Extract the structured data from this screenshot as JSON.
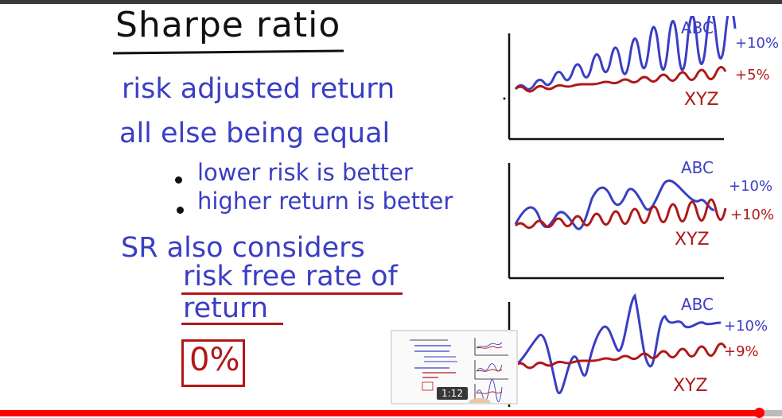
{
  "slide": {
    "title": "Sharpe ratio",
    "line1": "risk adjusted return",
    "line2": "all else being equal",
    "bullets": [
      "lower risk is better",
      "higher return is better"
    ],
    "line3": "SR also considers",
    "line4": "risk free rate of",
    "line5": "return",
    "boxed_value": "0%"
  },
  "charts": [
    {
      "top_label": "ABC",
      "top_value": "+10%",
      "bottom_label": "XYZ",
      "bottom_value": "+5%"
    },
    {
      "top_label": "ABC",
      "top_value": "+10%",
      "bottom_label": "XYZ",
      "bottom_value": "+10%"
    },
    {
      "top_label": "ABC",
      "top_value": "+10%",
      "bottom_label": "XYZ",
      "bottom_value": "+9%"
    }
  ],
  "colors": {
    "blue": "#3a3ec4",
    "red": "#b01818",
    "ink": "#111111",
    "progress": "#ff0000"
  },
  "player": {
    "preview_time": "1:12",
    "progress_fraction": 0.97
  }
}
